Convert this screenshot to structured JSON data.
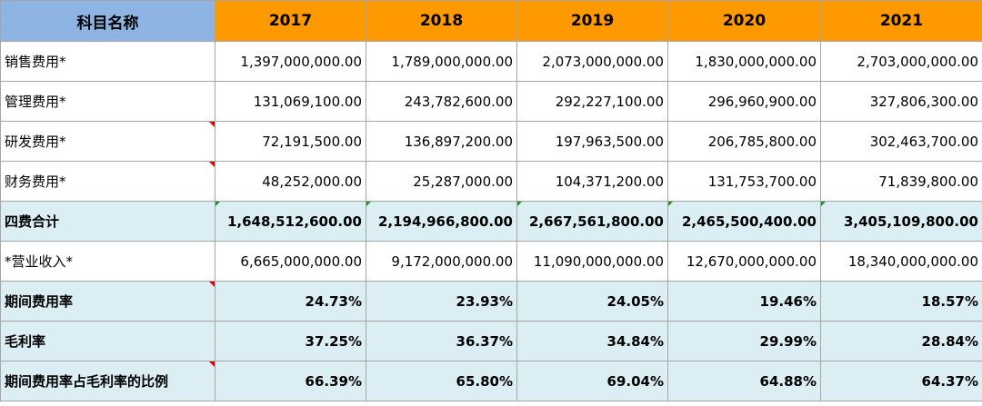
{
  "table": {
    "header": {
      "label": "科目名称",
      "years": [
        "2017",
        "2018",
        "2019",
        "2020",
        "2021"
      ]
    },
    "rows": [
      {
        "label": "销售费用*",
        "values": [
          "1,397,000,000.00",
          "1,789,000,000.00",
          "2,073,000,000.00",
          "1,830,000,000.00",
          "2,703,000,000.00"
        ]
      },
      {
        "label": "管理费用*",
        "values": [
          "131,069,100.00",
          "243,782,600.00",
          "292,227,100.00",
          "296,960,900.00",
          "327,806,300.00"
        ]
      },
      {
        "label": "研发费用*",
        "values": [
          "72,191,500.00",
          "136,897,200.00",
          "197,963,500.00",
          "206,785,800.00",
          "302,463,700.00"
        ]
      },
      {
        "label": "财务费用*",
        "values": [
          "48,252,000.00",
          "25,287,000.00",
          "104,371,200.00",
          "131,753,700.00",
          "71,839,800.00"
        ]
      },
      {
        "label": "四费合计",
        "values": [
          "1,648,512,600.00",
          "2,194,966,800.00",
          "2,667,561,800.00",
          "2,465,500,400.00",
          "3,405,109,800.00"
        ]
      },
      {
        "label": "*营业收入*",
        "values": [
          "6,665,000,000.00",
          "9,172,000,000.00",
          "11,090,000,000.00",
          "12,670,000,000.00",
          "18,340,000,000.00"
        ]
      },
      {
        "label": "期间费用率",
        "values": [
          "24.73%",
          "23.93%",
          "24.05%",
          "19.46%",
          "18.57%"
        ]
      },
      {
        "label": "毛利率",
        "values": [
          "37.25%",
          "36.37%",
          "34.84%",
          "29.99%",
          "28.84%"
        ]
      },
      {
        "label": "期间费用率占毛利率的比例",
        "values": [
          "66.39%",
          "65.80%",
          "69.04%",
          "64.88%",
          "64.37%"
        ]
      }
    ]
  },
  "colors": {
    "label_header_bg": "#8eb4e3",
    "year_header_bg": "#ff9900",
    "highlight_row_bg": "#dbeef4",
    "grid_line": "#a6a6a6",
    "comment_marker": "#e00000",
    "error_marker": "#1f8f1f"
  }
}
